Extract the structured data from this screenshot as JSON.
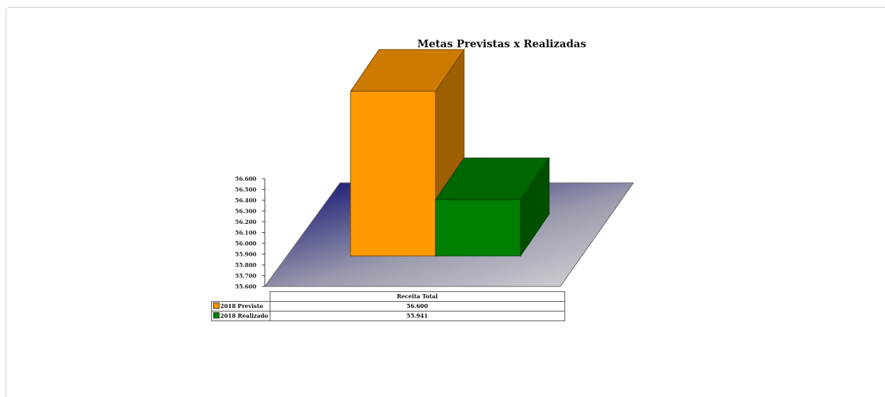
{
  "chart_data": {
    "type": "bar",
    "title": "Metas Previstas x Realizadas",
    "categories": [
      "Receita Total"
    ],
    "series": [
      {
        "name": "2018 Previsto",
        "values": [
          56600
        ],
        "display": [
          "56.600"
        ],
        "color": "#ff9a00"
      },
      {
        "name": "2018 Realizado",
        "values": [
          55941
        ],
        "display": [
          "55.941"
        ],
        "color": "#008000"
      }
    ],
    "ylim": [
      55600,
      56600
    ],
    "yticks": [
      "55.600",
      "55.700",
      "55.800",
      "55.900",
      "56.000",
      "56.100",
      "56.200",
      "56.300",
      "56.400",
      "56.500",
      "56.600"
    ],
    "legend": "data-table-below",
    "style": "3d"
  }
}
